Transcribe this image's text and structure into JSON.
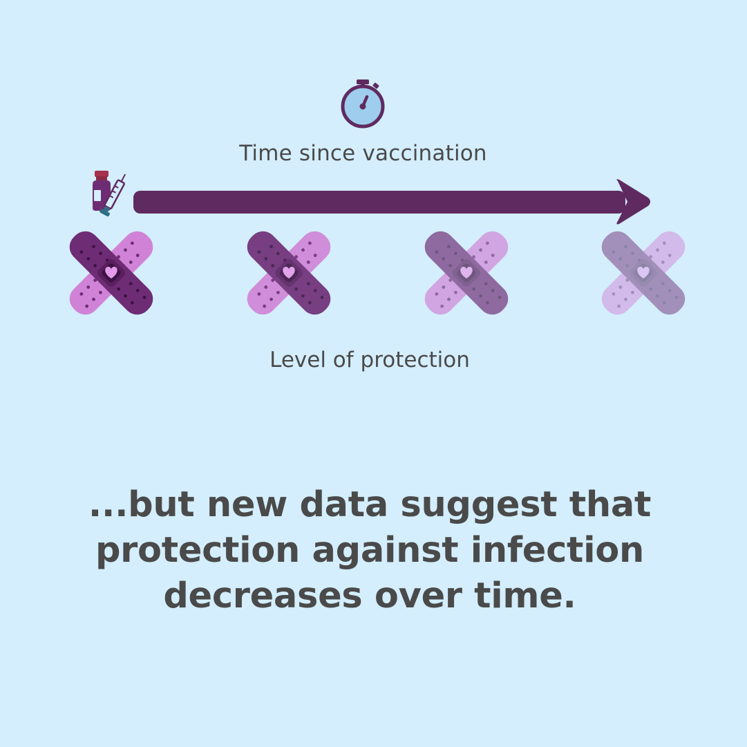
{
  "diagram": {
    "time_label": "Time since vaccination",
    "protection_label": "Level of protection",
    "icons": {
      "timer": "stopwatch-icon",
      "vaccine": "vaccine-vial-syringe-icon",
      "protection": "bandage-heart-icon"
    },
    "protection_levels": [
      1.0,
      0.85,
      0.5,
      0.2
    ],
    "colors": {
      "background": "#d4eefd",
      "arrow": "#5f2a60",
      "text": "#4a4a4a",
      "bandage_dark": "#6e2c75",
      "bandage_light": "#d083d6",
      "vial": "#a8324e",
      "syringe": "#2f6f86"
    }
  },
  "message": {
    "lines": [
      "...but new data suggest that",
      "protection against infection",
      "decreases over time."
    ]
  }
}
